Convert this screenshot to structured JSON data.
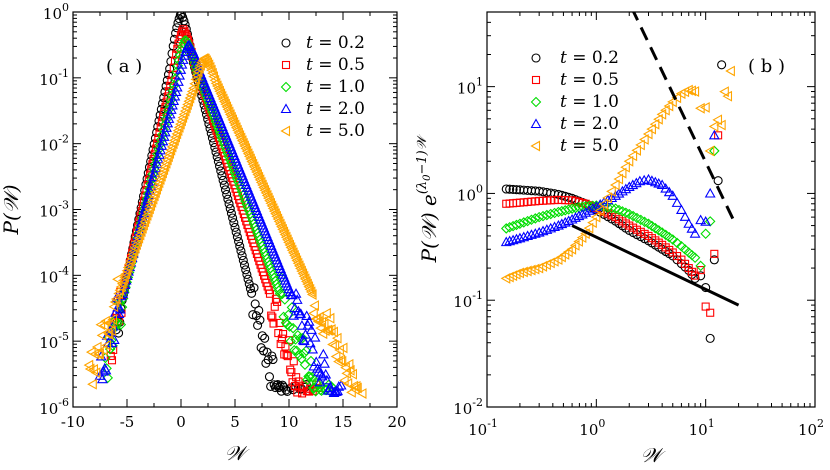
{
  "chart_data": [
    {
      "type": "scatter",
      "panel_label": "( a )",
      "xlabel": "𝒲",
      "ylabel": "P(𝒲)",
      "xscale": "linear",
      "yscale": "log",
      "xlim": [
        -10,
        20
      ],
      "ylim": [
        1e-06,
        1
      ],
      "x_ticks": [
        -10,
        -5,
        0,
        5,
        10,
        15,
        20
      ],
      "x_tick_labels": [
        "-10",
        "-5",
        "0",
        "5",
        "10",
        "15",
        "20"
      ],
      "y_ticks": [
        1e-06,
        1e-05,
        0.0001,
        0.001,
        0.01,
        0.1,
        1
      ],
      "y_tick_labels": [
        {
          "base": "10",
          "exp": "-6"
        },
        {
          "base": "10",
          "exp": "-5"
        },
        {
          "base": "10",
          "exp": "-4"
        },
        {
          "base": "10",
          "exp": "-3"
        },
        {
          "base": "10",
          "exp": "-2"
        },
        {
          "base": "10",
          "exp": "-1"
        },
        {
          "base": "10",
          "exp": "0"
        }
      ],
      "legend_position": "top-right",
      "series": [
        {
          "name": "t = 0.2",
          "t": "0.2",
          "marker": "circle",
          "color": "#000000",
          "peak_x": 0.0,
          "peak_y": 0.95,
          "left_decades_per_unit": 0.8,
          "right_decades_per_unit": 0.65,
          "x_min": -6,
          "x_max": 12
        },
        {
          "name": "t = 0.5",
          "t": "0.5",
          "marker": "square",
          "color": "#ff0000",
          "peak_x": 0.2,
          "peak_y": 0.55,
          "left_decades_per_unit": 0.72,
          "right_decades_per_unit": 0.5,
          "x_min": -6.5,
          "x_max": 13
        },
        {
          "name": "t = 1.0",
          "t": "1.0",
          "marker": "diamond",
          "color": "#00dd00",
          "peak_x": 0.4,
          "peak_y": 0.38,
          "left_decades_per_unit": 0.68,
          "right_decades_per_unit": 0.44,
          "x_min": -7,
          "x_max": 14
        },
        {
          "name": "t = 2.0",
          "t": "2.0",
          "marker": "triangle-up",
          "color": "#0000ff",
          "peak_x": 0.7,
          "peak_y": 0.32,
          "left_decades_per_unit": 0.62,
          "right_decades_per_unit": 0.4,
          "x_min": -7.5,
          "x_max": 15
        },
        {
          "name": "t = 5.0",
          "t": "5.0",
          "marker": "triangle-left",
          "color": "#ffa500",
          "peak_x": 2.2,
          "peak_y": 0.2,
          "left_decades_per_unit": 0.45,
          "right_decades_per_unit": 0.36,
          "x_min": -8.5,
          "x_max": 17
        }
      ]
    },
    {
      "type": "scatter",
      "panel_label": "( b )",
      "xlabel": "𝒲",
      "ylabel": "P(𝒲) e",
      "ylabel_exponent": "(λ",
      "ylabel_exponent_sub": "0",
      "ylabel_exponent_tail": "−1)𝒲",
      "xscale": "log",
      "yscale": "log",
      "xlim": [
        0.1,
        100
      ],
      "ylim": [
        0.01,
        50
      ],
      "x_ticks": [
        0.1,
        1,
        10,
        100
      ],
      "x_tick_labels": [
        {
          "base": "10",
          "exp": "-1"
        },
        {
          "base": "10",
          "exp": "0"
        },
        {
          "base": "10",
          "exp": "1"
        },
        {
          "base": "10",
          "exp": "2"
        }
      ],
      "y_ticks": [
        0.01,
        0.1,
        1,
        10
      ],
      "y_tick_labels": [
        {
          "base": "10",
          "exp": "-2"
        },
        {
          "base": "10",
          "exp": "-1"
        },
        {
          "base": "10",
          "exp": "0"
        },
        {
          "base": "10",
          "exp": "1"
        }
      ],
      "legend_position": "top-left",
      "reference_lines": [
        {
          "style": "solid",
          "x": [
            0.6,
            20
          ],
          "y": [
            0.5,
            0.09
          ]
        },
        {
          "style": "dashed",
          "x": [
            2.1,
            19
          ],
          "y": [
            55,
            0.5
          ]
        }
      ],
      "series": [
        {
          "name": "t = 0.2",
          "t": "0.2",
          "marker": "circle",
          "color": "#000000",
          "points": [
            [
              0.15,
              1.1
            ],
            [
              0.2,
              1.08
            ],
            [
              0.3,
              1.05
            ],
            [
              0.45,
              0.98
            ],
            [
              0.6,
              0.9
            ],
            [
              0.8,
              0.8
            ],
            [
              1.0,
              0.7
            ],
            [
              1.5,
              0.55
            ],
            [
              2,
              0.45
            ],
            [
              3,
              0.36
            ],
            [
              4,
              0.3
            ],
            [
              5,
              0.26
            ],
            [
              6,
              0.22
            ],
            [
              7,
              0.19
            ],
            [
              8,
              0.16
            ],
            [
              9,
              0.12
            ],
            [
              10,
              0.08
            ],
            [
              11,
              0.06
            ],
            [
              12,
              0.3
            ],
            [
              13,
              1.5
            ],
            [
              14,
              16
            ]
          ]
        },
        {
          "name": "t = 0.5",
          "t": "0.5",
          "marker": "square",
          "color": "#ff0000",
          "points": [
            [
              0.15,
              0.8
            ],
            [
              0.2,
              0.82
            ],
            [
              0.3,
              0.85
            ],
            [
              0.45,
              0.87
            ],
            [
              0.6,
              0.86
            ],
            [
              0.8,
              0.8
            ],
            [
              1.0,
              0.73
            ],
            [
              1.5,
              0.6
            ],
            [
              2,
              0.5
            ],
            [
              3,
              0.4
            ],
            [
              4,
              0.33
            ],
            [
              5,
              0.28
            ],
            [
              6,
              0.24
            ],
            [
              7,
              0.2
            ],
            [
              8,
              0.17
            ],
            [
              9,
              0.12
            ],
            [
              10,
              0.07
            ],
            [
              11,
              0.05
            ],
            [
              12,
              0.3
            ],
            [
              13,
              3.5
            ]
          ]
        },
        {
          "name": "t = 1.0",
          "t": "1.0",
          "marker": "diamond",
          "color": "#00dd00",
          "points": [
            [
              0.15,
              0.47
            ],
            [
              0.2,
              0.52
            ],
            [
              0.3,
              0.6
            ],
            [
              0.45,
              0.67
            ],
            [
              0.6,
              0.72
            ],
            [
              0.8,
              0.76
            ],
            [
              1.0,
              0.77
            ],
            [
              1.5,
              0.72
            ],
            [
              2,
              0.64
            ],
            [
              3,
              0.52
            ],
            [
              4,
              0.43
            ],
            [
              5,
              0.37
            ],
            [
              6,
              0.32
            ],
            [
              7,
              0.28
            ],
            [
              8,
              0.25
            ],
            [
              9,
              0.24
            ],
            [
              10,
              0.3
            ],
            [
              11,
              0.8
            ],
            [
              12,
              2.5
            ]
          ]
        },
        {
          "name": "t = 2.0",
          "t": "2.0",
          "marker": "triangle-up",
          "color": "#0000ff",
          "points": [
            [
              0.15,
              0.35
            ],
            [
              0.2,
              0.38
            ],
            [
              0.3,
              0.43
            ],
            [
              0.45,
              0.5
            ],
            [
              0.6,
              0.57
            ],
            [
              0.8,
              0.66
            ],
            [
              1.0,
              0.75
            ],
            [
              1.5,
              0.95
            ],
            [
              2,
              1.15
            ],
            [
              2.5,
              1.3
            ],
            [
              3,
              1.35
            ],
            [
              4,
              1.2
            ],
            [
              5,
              0.95
            ],
            [
              6,
              0.7
            ],
            [
              7,
              0.52
            ],
            [
              8,
              0.42
            ],
            [
              9,
              0.4
            ],
            [
              10,
              0.5
            ],
            [
              11,
              0.9
            ],
            [
              12,
              3.5
            ]
          ]
        },
        {
          "name": "t = 5.0",
          "t": "5.0",
          "marker": "triangle-left",
          "color": "#ffa500",
          "points": [
            [
              0.15,
              0.16
            ],
            [
              0.2,
              0.18
            ],
            [
              0.3,
              0.2
            ],
            [
              0.45,
              0.24
            ],
            [
              0.6,
              0.3
            ],
            [
              0.8,
              0.42
            ],
            [
              1.0,
              0.6
            ],
            [
              1.5,
              1.2
            ],
            [
              2,
              2.0
            ],
            [
              3,
              3.6
            ],
            [
              4,
              5.5
            ],
            [
              5,
              7.2
            ],
            [
              6,
              8.6
            ],
            [
              7,
              9.3
            ],
            [
              8,
              9.0
            ],
            [
              9,
              7.5
            ],
            [
              10,
              5.5
            ],
            [
              11,
              4.0
            ],
            [
              12,
              4.5
            ],
            [
              14,
              7
            ],
            [
              16,
              11
            ],
            [
              17,
              14
            ]
          ]
        }
      ]
    }
  ]
}
